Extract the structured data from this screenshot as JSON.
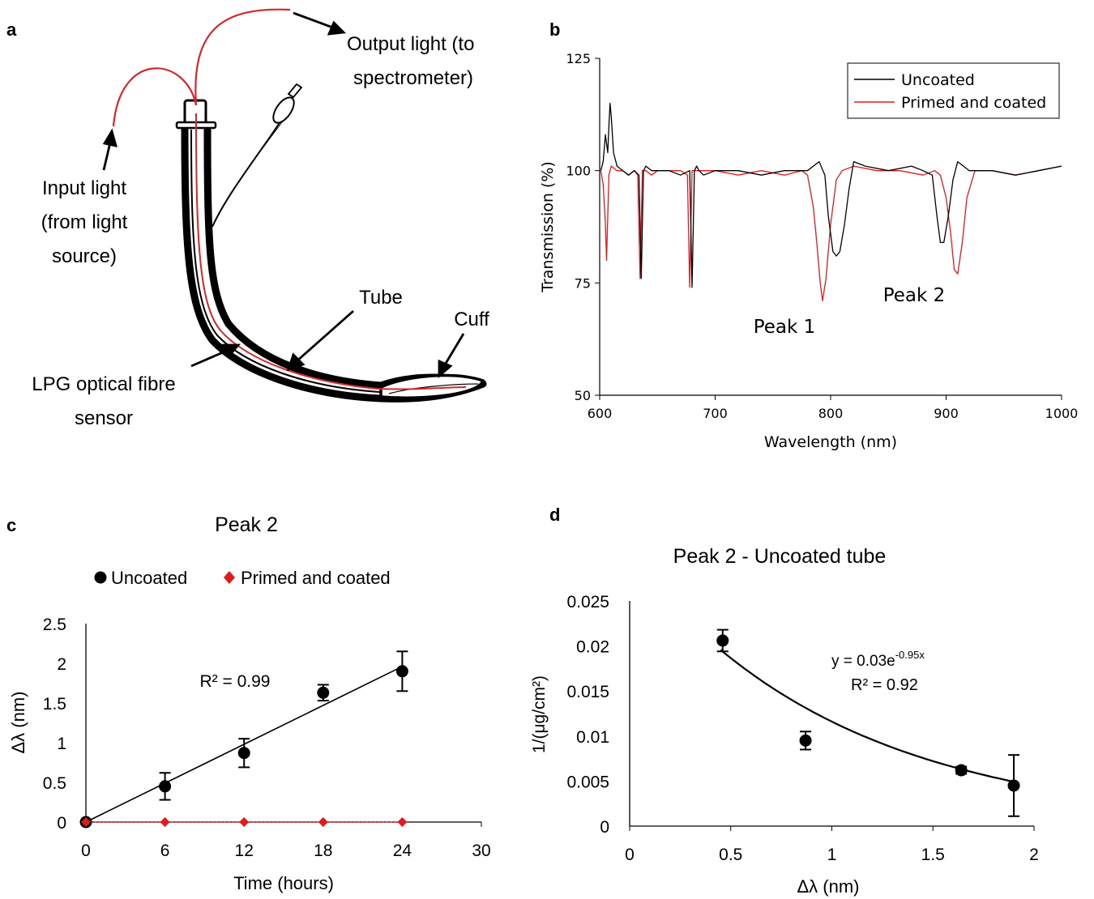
{
  "panel_a": {
    "label": "a",
    "annotations": {
      "output_light_1": "Output light (to",
      "output_light_2": "spectrometer)",
      "input_light_1": "Input light",
      "input_light_2": "(from light",
      "input_light_3": "source)",
      "tube": "Tube",
      "cuff": "Cuff",
      "sensor_1": "LPG optical fibre",
      "sensor_2": "sensor"
    },
    "colors": {
      "fibre": "#d62728",
      "tube": "#000000"
    }
  },
  "chart_data": [
    {
      "panel": "b",
      "type": "line",
      "xlabel": "Wavelength (nm)",
      "ylabel": "Transmission (%)",
      "xlim": [
        600,
        1000
      ],
      "ylim": [
        50,
        125
      ],
      "xticks": [
        600,
        700,
        800,
        900,
        1000
      ],
      "yticks": [
        50,
        75,
        100,
        125
      ],
      "grid": false,
      "legend_position": "top-right",
      "annotations": [
        "Peak 1",
        "Peak 2"
      ],
      "series": [
        {
          "name": "Uncoated",
          "color": "#000000",
          "x": [
            601,
            603,
            605,
            606,
            607,
            608,
            609,
            610,
            612,
            615,
            620,
            625,
            630,
            634,
            636,
            638,
            640,
            645,
            650,
            660,
            670,
            678,
            680,
            682,
            684,
            686,
            690,
            700,
            720,
            740,
            760,
            780,
            790,
            795,
            798,
            802,
            805,
            808,
            812,
            816,
            820,
            830,
            850,
            870,
            880,
            888,
            892,
            895,
            898,
            902,
            906,
            910,
            915,
            920,
            940,
            960,
            980,
            1000
          ],
          "y": [
            100,
            102,
            108,
            106,
            104,
            110,
            115,
            112,
            104,
            101,
            100,
            99,
            100,
            99,
            76,
            100,
            101,
            100,
            100,
            100,
            99,
            100,
            74,
            100,
            101,
            100,
            99,
            100,
            100,
            99,
            100,
            100,
            102,
            99,
            90,
            82,
            81,
            82,
            88,
            96,
            102,
            101,
            100,
            101,
            100,
            99,
            90,
            84,
            84,
            90,
            98,
            102,
            101,
            100,
            100,
            99,
            100,
            101
          ]
        },
        {
          "name": "Primed and coated",
          "color": "#e31a1c",
          "x": [
            601,
            603,
            605,
            606,
            607,
            608,
            610,
            615,
            620,
            625,
            630,
            633,
            635,
            637,
            640,
            645,
            650,
            660,
            670,
            676,
            678,
            680,
            683,
            690,
            700,
            720,
            740,
            760,
            775,
            780,
            785,
            788,
            791,
            793,
            796,
            800,
            805,
            810,
            820,
            840,
            860,
            880,
            890,
            895,
            900,
            904,
            907,
            910,
            914,
            918,
            925,
            940,
            960,
            980,
            1000
          ],
          "y": [
            100,
            97,
            88,
            80,
            90,
            99,
            101,
            100,
            100,
            99,
            100,
            99,
            76,
            100,
            100,
            99,
            100,
            100,
            100,
            99,
            74,
            100,
            100,
            100,
            100,
            99,
            100,
            99,
            100,
            99,
            92,
            84,
            75,
            71,
            76,
            88,
            98,
            100,
            101,
            100,
            100,
            99,
            100,
            99,
            94,
            86,
            78,
            77,
            84,
            94,
            100,
            100,
            99,
            100,
            101
          ]
        }
      ]
    },
    {
      "panel": "c",
      "type": "scatter",
      "title": "Peak 2",
      "xlabel": "Time (hours)",
      "ylabel": "Δλ (nm)",
      "xlim": [
        0,
        30
      ],
      "ylim": [
        0,
        2.5
      ],
      "xticks": [
        0,
        6,
        12,
        18,
        24,
        30
      ],
      "yticks": [
        0,
        0.5,
        1,
        1.5,
        2,
        2.5
      ],
      "grid": false,
      "legend_position": "top",
      "trendline_label": "R² = 0.99",
      "trendline": {
        "x": [
          0,
          24
        ],
        "y": [
          0,
          1.96
        ]
      },
      "series": [
        {
          "name": "Uncoated",
          "marker": "circle",
          "color": "#000000",
          "x": [
            0,
            6,
            12,
            18,
            24
          ],
          "y": [
            0,
            0.45,
            0.87,
            1.63,
            1.9
          ],
          "err": [
            0,
            0.17,
            0.18,
            0.1,
            0.25
          ]
        },
        {
          "name": "Primed and coated",
          "marker": "diamond",
          "color": "#e31a1c",
          "x": [
            0,
            6,
            12,
            18,
            24
          ],
          "y": [
            0,
            0,
            0,
            0,
            0
          ]
        }
      ]
    },
    {
      "panel": "d",
      "type": "scatter",
      "title": "Peak 2 - Uncoated tube",
      "xlabel": "Δλ (nm)",
      "ylabel": "1/(μg/cm²)",
      "xlim": [
        0,
        2
      ],
      "ylim": [
        0,
        0.025
      ],
      "xticks": [
        "0",
        "0.5",
        "1",
        "1.5",
        "2"
      ],
      "yticks": [
        "0",
        "0.005",
        "0.01",
        "0.015",
        "0.02",
        "0.025"
      ],
      "grid": false,
      "equation_prefix": "y = 0.03e",
      "equation_exponent": "-0.95x",
      "r2_label": "R² = 0.92",
      "fit": {
        "a": 0.03,
        "b": -0.95,
        "x_range": [
          0.45,
          1.9
        ]
      },
      "series": [
        {
          "marker": "circle",
          "color": "#000000",
          "x": [
            0.46,
            0.87,
            1.64,
            1.9
          ],
          "y": [
            0.0206,
            0.0095,
            0.0062,
            0.0045
          ],
          "err": [
            0.0012,
            0.001,
            0.0004,
            0.0034
          ]
        }
      ]
    }
  ]
}
